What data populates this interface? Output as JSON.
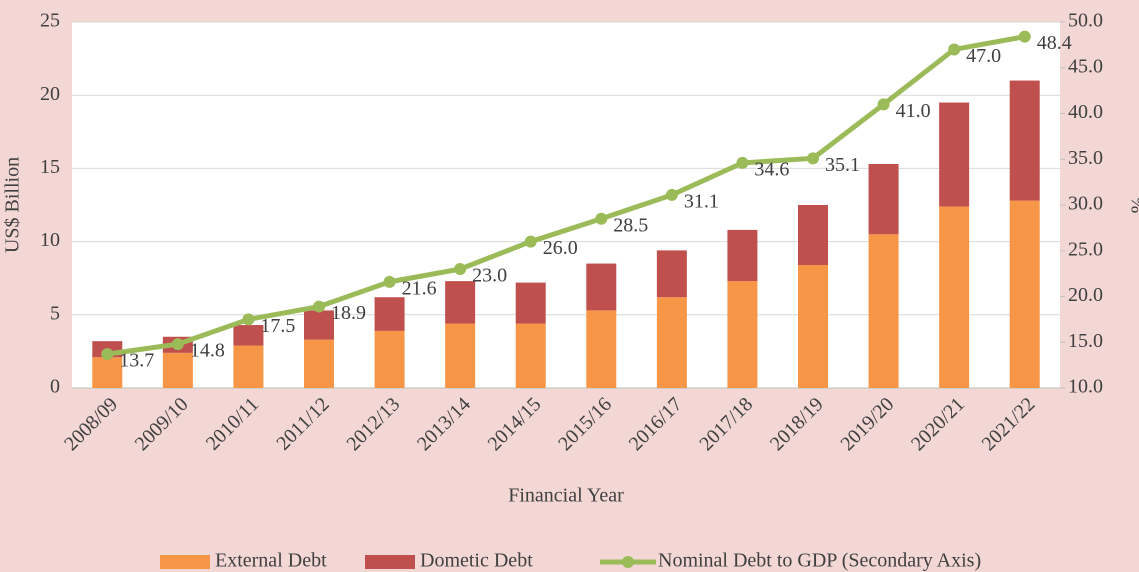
{
  "chart_data": {
    "type": "bar_line",
    "x_label": "Financial Year",
    "y_label": "US$ Billion",
    "y2_label": "%",
    "categories": [
      "2008/09",
      "2009/10",
      "2010/11",
      "2011/12",
      "2012/13",
      "2013/14",
      "2014/15",
      "2015/16",
      "2016/17",
      "2017/18",
      "2018/19",
      "2019/20",
      "2020/21",
      "2021/22"
    ],
    "series": [
      {
        "name": "External Debt",
        "color": "#f79646",
        "type": "bar",
        "values": [
          2.1,
          2.4,
          2.9,
          3.3,
          3.9,
          4.4,
          4.4,
          5.3,
          6.2,
          7.3,
          8.4,
          10.5,
          12.4,
          12.8
        ]
      },
      {
        "name": "Dometic Debt",
        "color": "#c0504d",
        "type": "bar",
        "values": [
          1.1,
          1.1,
          1.4,
          2.0,
          2.3,
          2.9,
          2.8,
          3.2,
          3.2,
          3.5,
          4.1,
          4.8,
          7.1,
          8.2
        ]
      },
      {
        "name": "Nominal Debt to GDP (Secondary Axis)",
        "color": "#9bbb59",
        "type": "line",
        "axis": "y2",
        "values": [
          13.7,
          14.8,
          17.5,
          18.9,
          21.6,
          23.0,
          26.0,
          28.5,
          31.1,
          34.6,
          35.1,
          41.0,
          47.0,
          48.4
        ],
        "value_labels": [
          "13.7",
          "14.8",
          "17.5",
          "18.9",
          "21.6",
          "23.0",
          "26.0",
          "28.5",
          "31.1",
          "34.6",
          "35.1",
          "41.0",
          "47.0",
          "48.4"
        ]
      }
    ],
    "ylim": [
      0,
      25
    ],
    "yticks": [
      0,
      5,
      10,
      15,
      20,
      25
    ],
    "y2lim": [
      10,
      50
    ],
    "y2ticks": [
      {
        "value": 10,
        "label": "10.0"
      },
      {
        "value": 15,
        "label": "15.0"
      },
      {
        "value": 20,
        "label": "20.0"
      },
      {
        "value": 25,
        "label": "25.0"
      },
      {
        "value": 30,
        "label": "30.0"
      },
      {
        "value": 35,
        "label": "35.0"
      },
      {
        "value": 40,
        "label": "40.0"
      },
      {
        "value": 45,
        "label": "45.0"
      },
      {
        "value": 50,
        "label": "50.0"
      }
    ],
    "grid": true,
    "legend": "bottom"
  }
}
